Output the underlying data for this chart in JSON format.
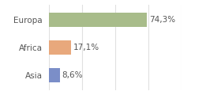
{
  "categories": [
    "Europa",
    "Africa",
    "Asia"
  ],
  "values": [
    74.3,
    17.1,
    8.6
  ],
  "bar_colors": [
    "#a8bc8a",
    "#e8a87c",
    "#7b8ec8"
  ],
  "labels": [
    "74,3%",
    "17,1%",
    "8,6%"
  ],
  "background_color": "#ffffff",
  "grid_color": "#e0e0e0",
  "xlim": [
    0,
    100
  ],
  "bar_height": 0.52,
  "label_fontsize": 7.5,
  "tick_fontsize": 7.5,
  "figsize": [
    2.8,
    1.2
  ],
  "dpi": 100
}
